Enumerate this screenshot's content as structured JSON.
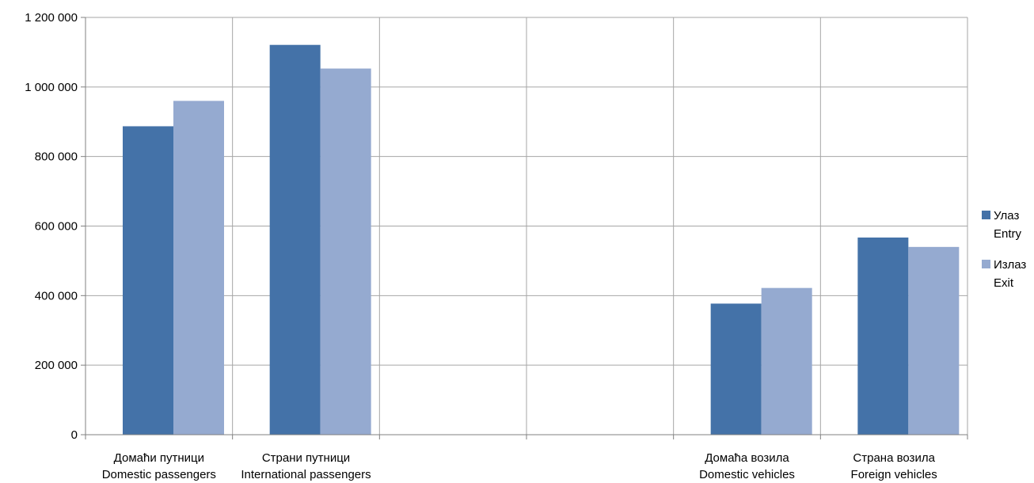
{
  "chart_data": {
    "type": "bar",
    "categories": [
      [
        "Домаћи путници",
        "Domestic passengers"
      ],
      [
        "Страни путници",
        "International passengers"
      ],
      [
        "",
        ""
      ],
      [
        "",
        ""
      ],
      [
        "Домаћа возила",
        "Domestic vehicles"
      ],
      [
        "Страна возила",
        "Foreign vehicles"
      ]
    ],
    "series": [
      {
        "name": [
          "Улаз",
          "Entry"
        ],
        "color": "#4472a8",
        "values": [
          887000,
          1121000,
          null,
          null,
          377000,
          567000
        ]
      },
      {
        "name": [
          "Излаз",
          "Exit"
        ],
        "color": "#95aad0",
        "values": [
          960000,
          1053000,
          null,
          null,
          422000,
          540000
        ]
      }
    ],
    "y_ticks": [
      "0",
      "200 000",
      "400 000",
      "600 000",
      "800 000",
      "1 000 000",
      "1 200 000"
    ],
    "ylim": [
      0,
      1200000
    ],
    "grid": true,
    "legend_position": "right",
    "title": "",
    "xlabel": "",
    "ylabel": ""
  }
}
